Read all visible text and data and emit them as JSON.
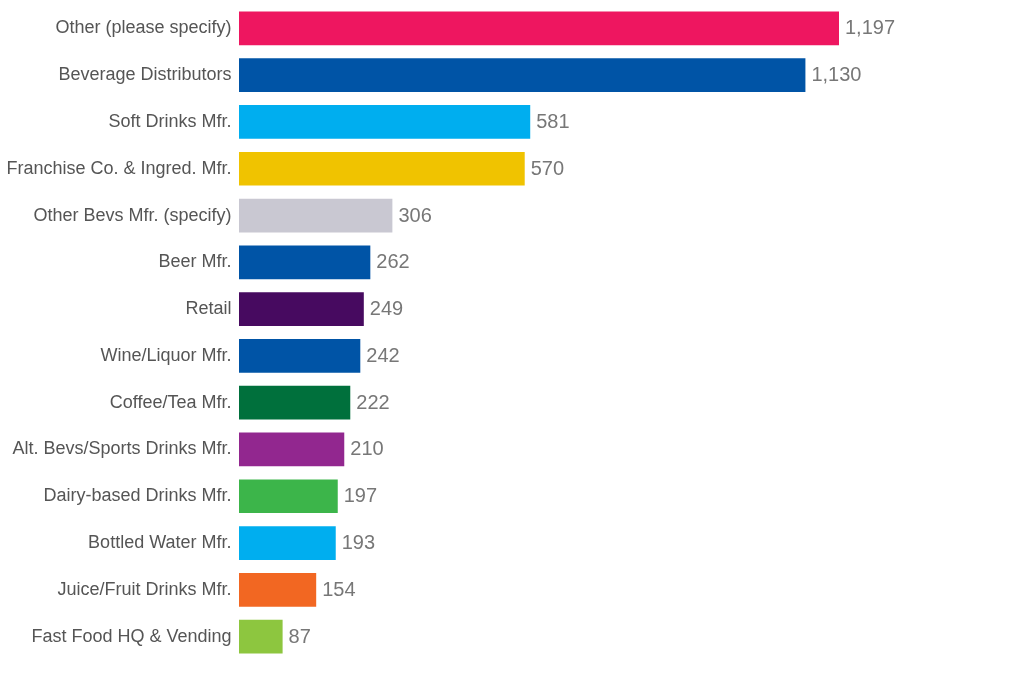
{
  "chart_data": {
    "type": "bar",
    "orientation": "horizontal",
    "categories": [
      "Other (please specify)",
      "Beverage Distributors",
      "Soft Drinks Mfr.",
      "Franchise Co. & Ingred. Mfr.",
      "Other Bevs Mfr. (specify)",
      "Beer Mfr.",
      "Retail",
      "Wine/Liquor Mfr.",
      "Coffee/Tea Mfr.",
      "Alt. Bevs/Sports Drinks Mfr.",
      "Dairy-based Drinks Mfr.",
      "Bottled Water Mfr.",
      "Juice/Fruit Drinks Mfr.",
      "Fast Food HQ & Vending"
    ],
    "values": [
      1197,
      1130,
      581,
      570,
      306,
      262,
      249,
      242,
      222,
      210,
      197,
      193,
      154,
      87
    ],
    "value_labels": [
      "1,197",
      "1,130",
      "581",
      "570",
      "306",
      "262",
      "249",
      "242",
      "222",
      "210",
      "197",
      "193",
      "154",
      "87"
    ],
    "colors": [
      "#ee1660",
      "#0054a6",
      "#00aeef",
      "#f0c300",
      "#c9c8d2",
      "#0054a6",
      "#470a60",
      "#0054a6",
      "#00703c",
      "#92278f",
      "#3cb54a",
      "#00aeef",
      "#f26722",
      "#8dc63f"
    ],
    "grid": false
  }
}
